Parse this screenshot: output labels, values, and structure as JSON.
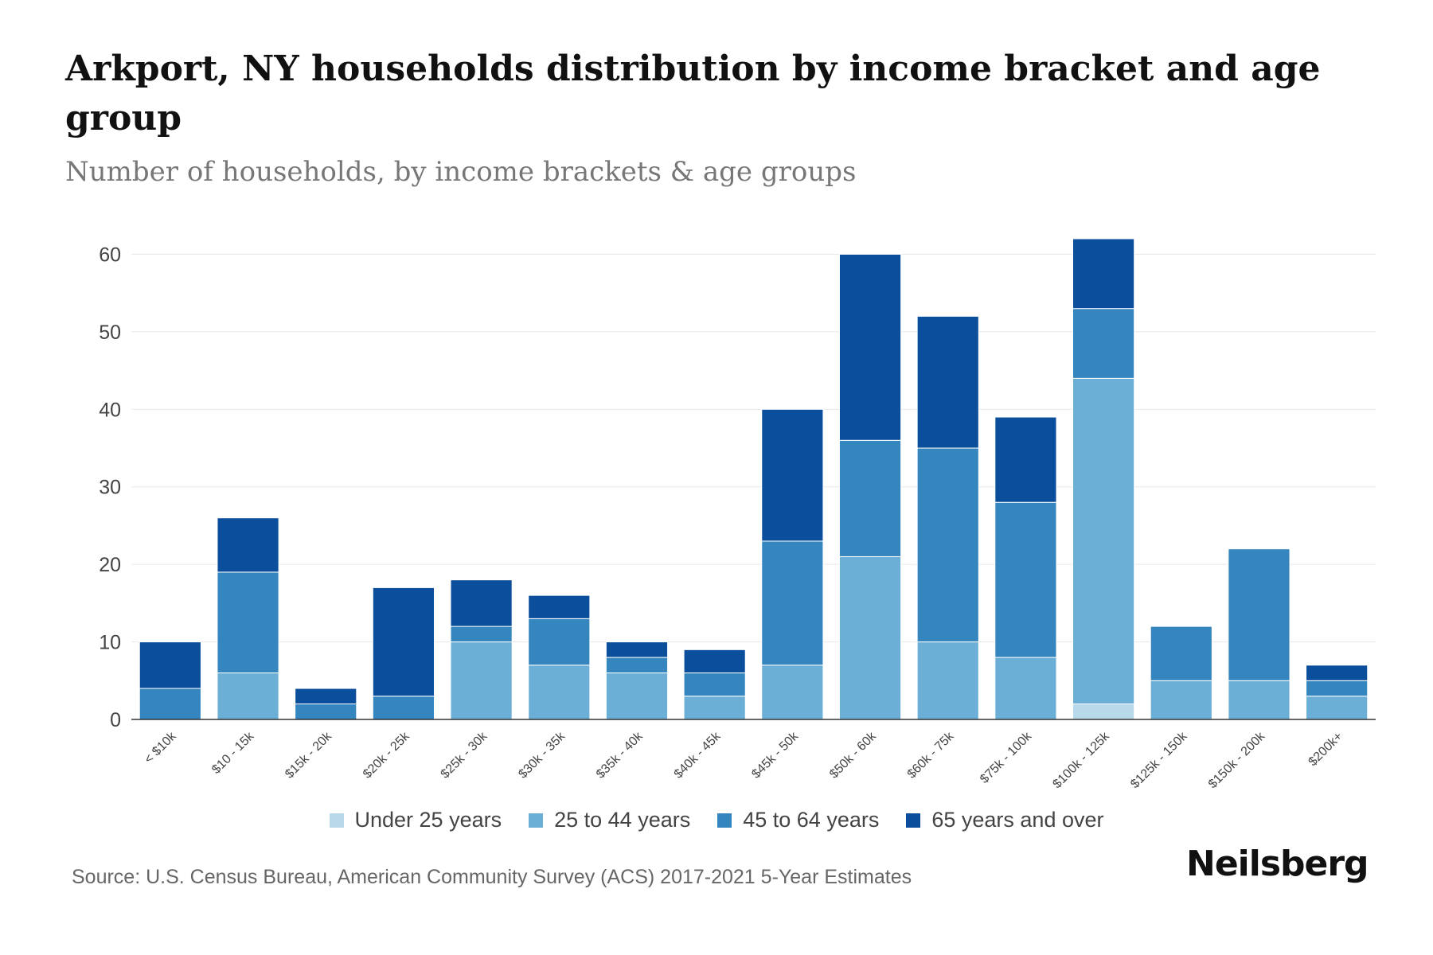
{
  "header": {
    "title": "Arkport, NY households distribution by income bracket and age group",
    "subtitle": "Number of households, by income brackets & age groups"
  },
  "footer": {
    "source": "Source: U.S. Census Bureau, American Community Survey (ACS) 2017-2021 5-Year Estimates",
    "brand": "Neilsberg"
  },
  "colors": {
    "under_25": "#b7d9ea",
    "age_25_44": "#6baed6",
    "age_45_64": "#3585bf",
    "age_65_plus": "#0b4f9c",
    "grid": "#e8e8e8",
    "axis": "#333333",
    "tick_text": "#444444"
  },
  "chart_data": {
    "type": "bar",
    "stacked": true,
    "title": "Arkport, NY households distribution by income bracket and age group",
    "subtitle": "Number of households, by income brackets & age groups",
    "xlabel": "",
    "ylabel": "",
    "ylim": [
      0,
      62
    ],
    "yticks": [
      0,
      10,
      20,
      30,
      40,
      50,
      60
    ],
    "grid": true,
    "legend_position": "bottom",
    "categories": [
      "< $10k",
      "$10 - 15k",
      "$15k - 20k",
      "$20k - 25k",
      "$25k - 30k",
      "$30k - 35k",
      "$35k - 40k",
      "$40k - 45k",
      "$45k - 50k",
      "$50k - 60k",
      "$60k - 75k",
      "$75k - 100k",
      "$100k - 125k",
      "$125k - 150k",
      "$150k - 200k",
      "$200k+"
    ],
    "series": [
      {
        "name": "Under 25 years",
        "color": "#b7d9ea",
        "values": [
          0,
          0,
          0,
          0,
          0,
          0,
          0,
          0,
          0,
          0,
          0,
          0,
          2,
          0,
          0,
          0
        ]
      },
      {
        "name": "25 to 44 years",
        "color": "#6baed6",
        "values": [
          0,
          6,
          0,
          0,
          10,
          7,
          6,
          3,
          7,
          21,
          10,
          8,
          42,
          5,
          5,
          3
        ]
      },
      {
        "name": "45 to 64 years",
        "color": "#3585bf",
        "values": [
          4,
          13,
          2,
          3,
          2,
          6,
          2,
          3,
          16,
          15,
          25,
          20,
          9,
          7,
          17,
          2
        ]
      },
      {
        "name": "65 years and over",
        "color": "#0b4f9c",
        "values": [
          6,
          7,
          2,
          14,
          6,
          3,
          2,
          3,
          17,
          24,
          17,
          11,
          9,
          0,
          0,
          2
        ]
      }
    ]
  }
}
